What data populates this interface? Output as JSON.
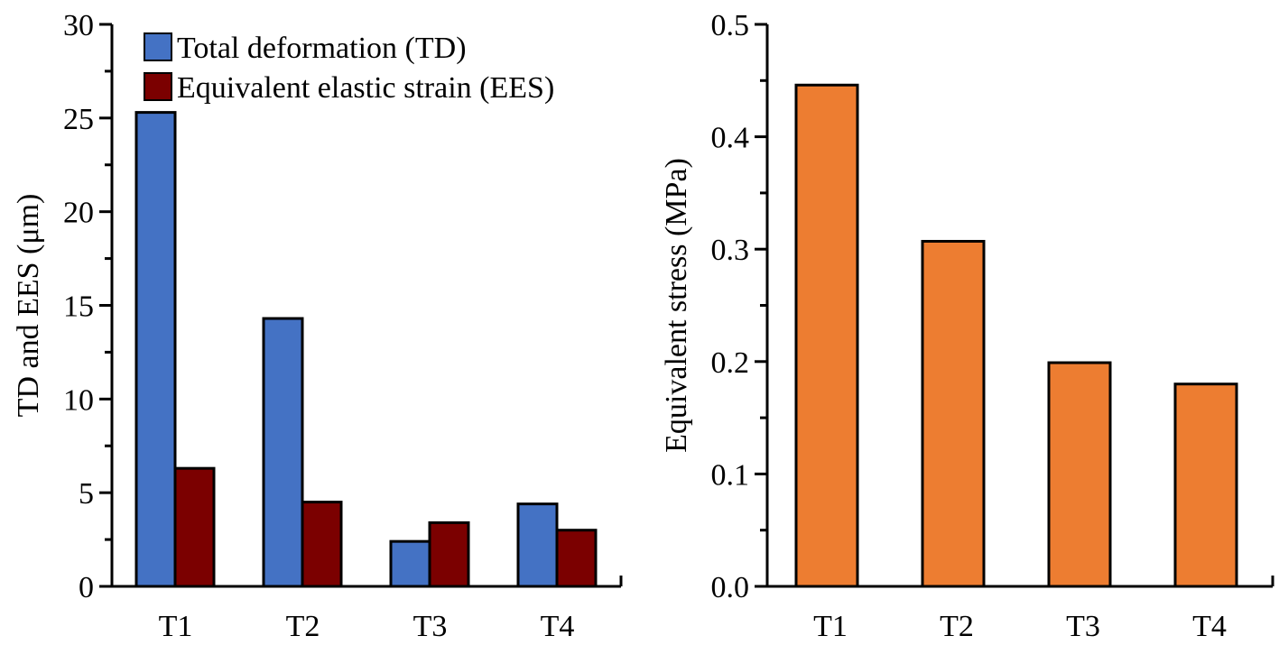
{
  "chart_data": [
    {
      "type": "bar",
      "categories": [
        "T1",
        "T2",
        "T3",
        "T4"
      ],
      "series": [
        {
          "name": "Total deformation (TD)",
          "values": [
            25.3,
            14.3,
            2.4,
            4.4
          ]
        },
        {
          "name": "Equivalent elastic strain (EES)",
          "values": [
            6.3,
            4.5,
            3.4,
            3.0
          ]
        }
      ],
      "title": "",
      "xlabel": "",
      "ylabel": "TD and EES (μm)",
      "ylim": [
        0,
        30
      ],
      "yticks": [
        "0",
        "5",
        "10",
        "15",
        "20",
        "25",
        "30"
      ],
      "grid": false,
      "legend": "top-left",
      "colors": [
        "#4472C4",
        "#7B0000"
      ]
    },
    {
      "type": "bar",
      "categories": [
        "T1",
        "T2",
        "T3",
        "T4"
      ],
      "series": [
        {
          "values": [
            0.446,
            0.307,
            0.199,
            0.18
          ]
        }
      ],
      "title": "",
      "xlabel": "",
      "ylabel": "Equivalent stress (MPa)",
      "ylim": [
        0,
        0.5
      ],
      "yticks": [
        "0.0",
        "0.1",
        "0.2",
        "0.3",
        "0.4",
        "0.5"
      ],
      "grid": false,
      "colors": [
        "#ED7D31"
      ]
    }
  ]
}
